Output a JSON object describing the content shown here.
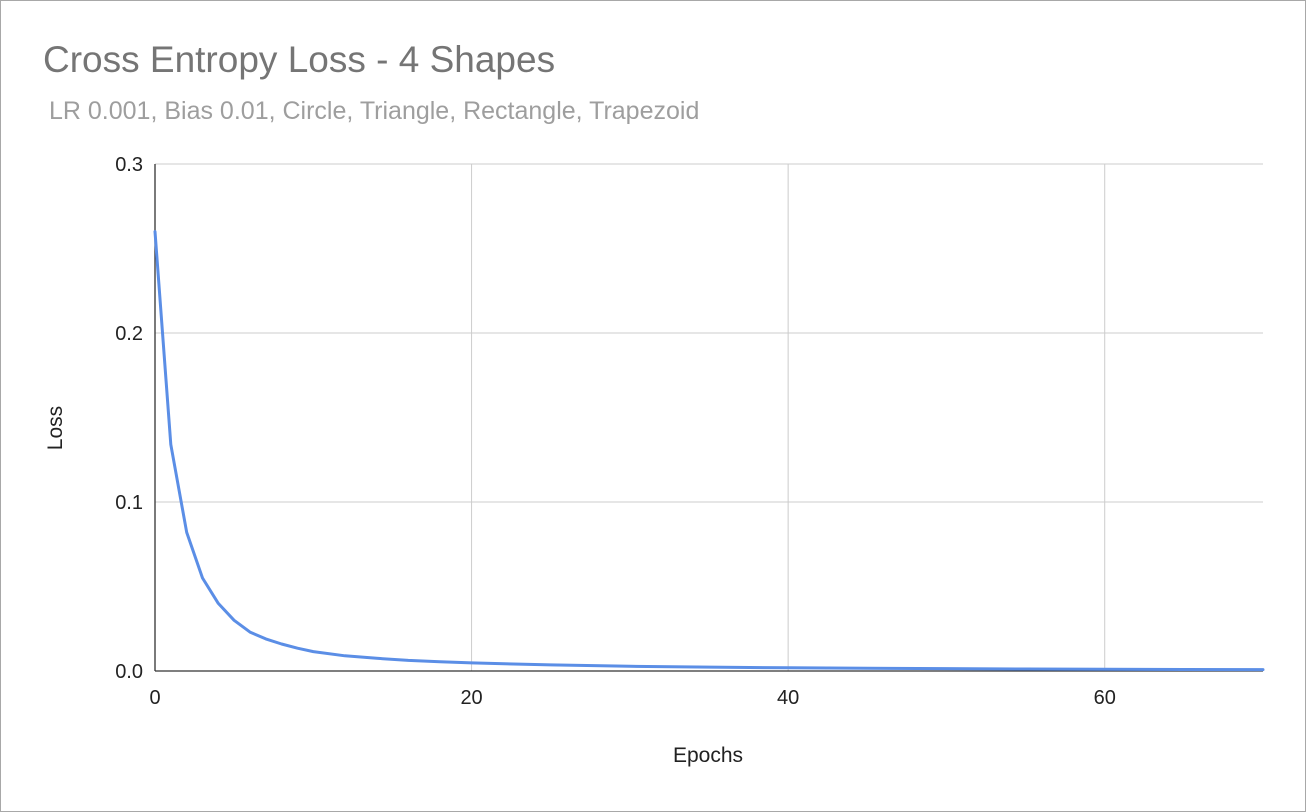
{
  "chart_data": {
    "type": "line",
    "title": "Cross Entropy Loss - 4 Shapes",
    "subtitle": "LR 0.001, Bias 0.01, Circle, Triangle, Rectangle, Trapezoid",
    "xlabel": "Epochs",
    "ylabel": "Loss",
    "xlim": [
      0,
      70
    ],
    "ylim": [
      0,
      0.3
    ],
    "x_ticks": [
      0,
      20,
      40,
      60
    ],
    "y_ticks": [
      0,
      0.1,
      0.2,
      0.3
    ],
    "x_tick_labels": [
      "0",
      "20",
      "40",
      "60"
    ],
    "y_tick_labels": [
      "0.0",
      "0.1",
      "0.2",
      "0.3"
    ],
    "grid": true,
    "legend": "none",
    "series": [
      {
        "color": "#5b8ee6",
        "x": [
          0,
          1,
          2,
          3,
          4,
          5,
          6,
          7,
          8,
          9,
          10,
          12,
          14,
          16,
          18,
          20,
          25,
          30,
          35,
          40,
          45,
          50,
          55,
          60,
          65,
          70
        ],
        "y": [
          0.26,
          0.134,
          0.082,
          0.055,
          0.04,
          0.03,
          0.023,
          0.019,
          0.016,
          0.0135,
          0.0115,
          0.009,
          0.0075,
          0.0063,
          0.0055,
          0.0048,
          0.0036,
          0.0028,
          0.0023,
          0.0019,
          0.0016,
          0.0014,
          0.0012,
          0.001,
          0.0009,
          0.0008
        ]
      }
    ]
  }
}
